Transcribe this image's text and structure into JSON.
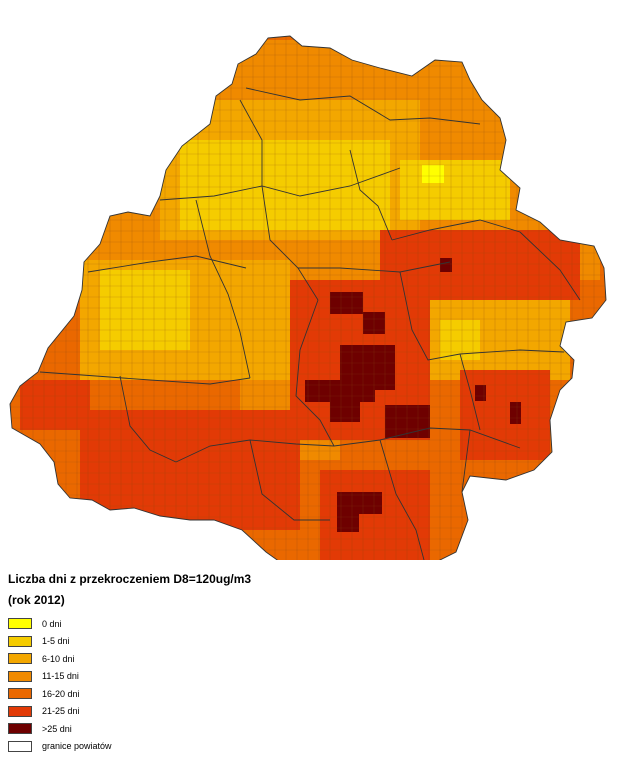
{
  "legend": {
    "title": "Liczba dni z przekroczeniem D8=120ug/m3",
    "subtitle": "(rok 2012)",
    "items": [
      {
        "label": "0 dni",
        "color": "#ffff00"
      },
      {
        "label": "1-5 dni",
        "color": "#f5cc00"
      },
      {
        "label": "6-10 dni",
        "color": "#f3a700"
      },
      {
        "label": "11-15 dni",
        "color": "#f08a00"
      },
      {
        "label": "16-20 dni",
        "color": "#ea6800"
      },
      {
        "label": "21-25 dni",
        "color": "#e23a06"
      },
      {
        "label": ">25 dni",
        "color": "#6e0000"
      },
      {
        "label": "granice powiatów",
        "color": "#ffffff"
      }
    ]
  }
}
